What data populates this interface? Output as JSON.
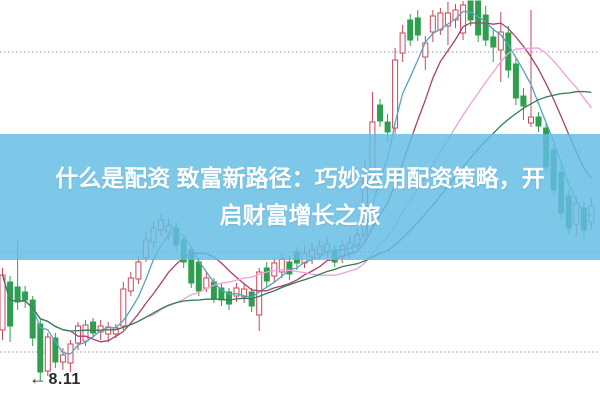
{
  "page": {
    "background": "#ffffff"
  },
  "banner": {
    "line1": "什么是配资 致富新路径：巧妙运用配资策略，开",
    "line2": "启财富增长之旅",
    "background_rgba": "rgba(100,190,229,0.84)",
    "text_color": "#ffffff"
  },
  "annotation": {
    "arrow": "←",
    "label": "8.11",
    "color": "#2a2a2a"
  },
  "chart_data": {
    "type": "candlestick",
    "title": "",
    "xlabel": "",
    "ylabel": "",
    "ylim": [
      8.015,
      10.015
    ],
    "gridline_prices": [
      9.755,
      9.255,
      8.755,
      8.255
    ],
    "grid_on": true,
    "grid_color": "#9a9a9a",
    "up_color": "#c8475a",
    "up_fill": "#ffffff",
    "down_color": "#2f9e4e",
    "low_point_label": "8.11",
    "moving_averages": [
      {
        "name": "MA5",
        "window": 5,
        "color": "#55a3c0"
      },
      {
        "name": "MA10",
        "window": 10,
        "color": "#a84072"
      },
      {
        "name": "MA20",
        "window": 20,
        "color": "#f0a0dc"
      },
      {
        "name": "MA30",
        "window": 30,
        "color": "#2f7d5a"
      }
    ],
    "candle_format": [
      "open",
      "high",
      "low",
      "close"
    ],
    "candles": [
      [
        8.365,
        8.675,
        8.315,
        8.64
      ],
      [
        8.605,
        8.635,
        8.305,
        8.385
      ],
      [
        8.58,
        8.815,
        8.465,
        8.505
      ],
      [
        8.555,
        8.585,
        8.475,
        8.515
      ],
      [
        8.515,
        8.535,
        8.285,
        8.325
      ],
      [
        8.395,
        8.425,
        8.11,
        8.155
      ],
      [
        8.16,
        8.35,
        8.135,
        8.33
      ],
      [
        8.325,
        8.35,
        8.175,
        8.205
      ],
      [
        8.205,
        8.275,
        8.165,
        8.24
      ],
      [
        8.2,
        8.315,
        8.155,
        8.295
      ],
      [
        8.3,
        8.405,
        8.265,
        8.385
      ],
      [
        8.31,
        8.415,
        8.285,
        8.39
      ],
      [
        8.405,
        8.425,
        8.325,
        8.35
      ],
      [
        8.355,
        8.415,
        8.315,
        8.385
      ],
      [
        8.345,
        8.405,
        8.305,
        8.38
      ],
      [
        8.345,
        8.395,
        8.325,
        8.375
      ],
      [
        8.385,
        8.605,
        8.365,
        8.57
      ],
      [
        8.56,
        8.655,
        8.535,
        8.625
      ],
      [
        8.62,
        8.735,
        8.595,
        8.705
      ],
      [
        8.725,
        8.855,
        8.705,
        8.815
      ],
      [
        8.805,
        8.905,
        8.775,
        8.875
      ],
      [
        8.865,
        8.945,
        8.835,
        8.915
      ],
      [
        8.855,
        8.925,
        8.815,
        8.89
      ],
      [
        8.875,
        8.905,
        8.765,
        8.79
      ],
      [
        8.815,
        8.835,
        8.675,
        8.705
      ],
      [
        8.765,
        8.785,
        8.575,
        8.6
      ],
      [
        8.705,
        8.725,
        8.535,
        8.56
      ],
      [
        8.575,
        8.655,
        8.555,
        8.625
      ],
      [
        8.605,
        8.625,
        8.5,
        8.525
      ],
      [
        8.575,
        8.595,
        8.485,
        8.515
      ],
      [
        8.555,
        8.575,
        8.465,
        8.495
      ],
      [
        8.535,
        8.6,
        8.505,
        8.575
      ],
      [
        8.53,
        8.595,
        8.5,
        8.57
      ],
      [
        8.555,
        8.575,
        8.455,
        8.485
      ],
      [
        8.44,
        8.675,
        8.36,
        8.655
      ],
      [
        8.675,
        8.705,
        8.58,
        8.61
      ],
      [
        8.635,
        8.73,
        8.605,
        8.7
      ],
      [
        8.655,
        8.75,
        8.625,
        8.72
      ],
      [
        8.705,
        8.735,
        8.615,
        8.645
      ],
      [
        8.755,
        8.78,
        8.665,
        8.7
      ],
      [
        8.7,
        8.785,
        8.675,
        8.75
      ],
      [
        8.73,
        8.8,
        8.695,
        8.765
      ],
      [
        8.745,
        8.815,
        8.715,
        8.785
      ],
      [
        8.755,
        8.825,
        8.725,
        8.795
      ],
      [
        8.765,
        8.795,
        8.68,
        8.705
      ],
      [
        8.73,
        8.82,
        8.7,
        8.785
      ],
      [
        8.75,
        8.835,
        8.72,
        8.8
      ],
      [
        8.785,
        8.875,
        8.755,
        8.84
      ],
      [
        8.84,
        9.215,
        8.8,
        9.115
      ],
      [
        9.115,
        9.555,
        9.075,
        9.405
      ],
      [
        9.49,
        9.52,
        9.38,
        9.41
      ],
      [
        9.405,
        9.445,
        9.305,
        9.355
      ],
      [
        9.375,
        9.775,
        9.345,
        9.715
      ],
      [
        9.75,
        9.89,
        9.705,
        9.85
      ],
      [
        9.915,
        9.945,
        9.785,
        9.815
      ],
      [
        9.925,
        9.965,
        9.81,
        9.84
      ],
      [
        9.73,
        9.835,
        9.665,
        9.8
      ],
      [
        9.855,
        9.965,
        9.805,
        9.935
      ],
      [
        9.865,
        9.975,
        9.84,
        9.95
      ],
      [
        9.885,
        10.005,
        9.79,
        9.95
      ],
      [
        9.915,
        9.995,
        9.875,
        9.965
      ],
      [
        9.85,
        10.01,
        9.815,
        9.99
      ],
      [
        10.01,
        10.012,
        9.885,
        9.915
      ],
      [
        10.01,
        10.013,
        9.805,
        9.84
      ],
      [
        9.94,
        9.985,
        9.785,
        9.815
      ],
      [
        9.83,
        9.875,
        9.705,
        9.78
      ],
      [
        9.765,
        9.955,
        9.605,
        9.855
      ],
      [
        9.85,
        9.885,
        9.625,
        9.665
      ],
      [
        9.695,
        9.725,
        9.49,
        9.525
      ],
      [
        9.535,
        9.575,
        9.415,
        9.485
      ],
      [
        9.4,
        9.965,
        9.38,
        9.43
      ],
      [
        9.43,
        9.455,
        9.355,
        9.385
      ],
      [
        9.375,
        9.405,
        9.15,
        9.18
      ],
      [
        9.265,
        9.295,
        9.035,
        9.065
      ],
      [
        9.155,
        9.185,
        8.92,
        8.95
      ],
      [
        9.035,
        9.065,
        8.845,
        8.875
      ],
      [
        8.895,
        9.035,
        8.835,
        9.0
      ],
      [
        8.975,
        9.005,
        8.825,
        8.865
      ],
      [
        8.905,
        9.025,
        8.865,
        8.985
      ]
    ]
  }
}
